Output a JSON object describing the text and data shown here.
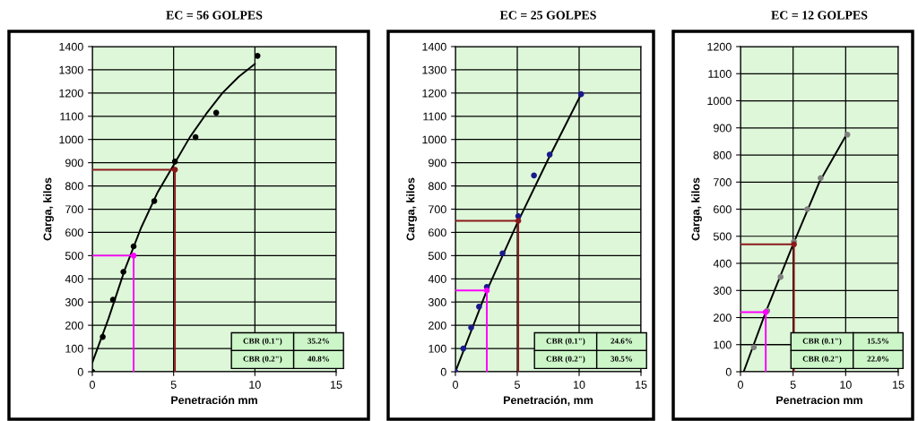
{
  "chart_data": [
    {
      "type": "line",
      "title": "EC = 56 GOLPES",
      "xlabel": "Penetración mm",
      "ylabel": "Carga, kilos",
      "xlim": [
        0,
        15
      ],
      "ylim": [
        0,
        1400
      ],
      "xticks": [
        0,
        5,
        10,
        15
      ],
      "yticks": [
        0,
        100,
        200,
        300,
        400,
        500,
        600,
        700,
        800,
        900,
        1000,
        1100,
        1200,
        1300,
        1400
      ],
      "grid": true,
      "series": [
        {
          "color": "#000000",
          "x": [
            0,
            1,
            2,
            3,
            4,
            5,
            6,
            7,
            8,
            9,
            10
          ],
          "values": [
            40,
            230,
            440,
            620,
            770,
            890,
            1010,
            1110,
            1200,
            1270,
            1325
          ]
        },
        {
          "color": "#ff00ff",
          "x": [
            0,
            2.54,
            2.54
          ],
          "values": [
            500,
            500,
            0
          ]
        },
        {
          "color": "#8b1a1a",
          "x": [
            0,
            5.08,
            5.08
          ],
          "values": [
            870,
            870,
            0
          ]
        },
        {
          "type": "scatter",
          "marker": "circle",
          "color": "#000000",
          "x": [
            0,
            0.64,
            1.27,
            1.91,
            2.54,
            3.81,
            5.08,
            6.35,
            7.62,
            10.16
          ],
          "values": [
            0,
            150,
            310,
            430,
            540,
            735,
            905,
            1010,
            1115,
            1360
          ]
        },
        {
          "type": "scatter",
          "marker": "circle",
          "color": "#8b1a1a",
          "x": [
            5.08
          ],
          "values": [
            870
          ]
        },
        {
          "type": "scatter",
          "marker": "circle",
          "color": "#ff00ff",
          "x": [
            2.54
          ],
          "values": [
            500
          ]
        }
      ],
      "annotations": [
        "CBR (0.1\")",
        "35.2%",
        "CBR (0.2\")",
        "40.8%"
      ]
    },
    {
      "type": "line",
      "title": "EC = 25 GOLPES",
      "xlabel": "Penetración, mm",
      "ylabel": "Carga, kilos",
      "xlim": [
        0,
        15
      ],
      "ylim": [
        0,
        1400
      ],
      "xticks": [
        0,
        5,
        10,
        15
      ],
      "yticks": [
        0,
        100,
        200,
        300,
        400,
        500,
        600,
        700,
        800,
        900,
        1000,
        1100,
        1200,
        1300,
        1400
      ],
      "grid": true,
      "series": [
        {
          "color": "#000000",
          "x": [
            0,
            2.5,
            5,
            7.5,
            10.16
          ],
          "values": [
            0,
            345,
            640,
            915,
            1195
          ]
        },
        {
          "color": "#ff00ff",
          "x": [
            0,
            2.54,
            2.54
          ],
          "values": [
            350,
            350,
            0
          ]
        },
        {
          "color": "#8b1a1a",
          "x": [
            0,
            5.08,
            5.08
          ],
          "values": [
            650,
            650,
            0
          ]
        },
        {
          "type": "scatter",
          "marker": "circle",
          "color": "#1a1a8c",
          "x": [
            0,
            0.64,
            1.27,
            1.91,
            2.54,
            3.81,
            5.08,
            6.35,
            7.62,
            10.16
          ],
          "values": [
            0,
            100,
            190,
            280,
            365,
            510,
            670,
            845,
            935,
            1195
          ]
        },
        {
          "type": "scatter",
          "marker": "circle",
          "color": "#8b1a1a",
          "x": [
            5.08
          ],
          "values": [
            650
          ]
        },
        {
          "type": "scatter",
          "marker": "circle",
          "color": "#ff00ff",
          "x": [
            2.54
          ],
          "values": [
            350
          ]
        }
      ],
      "annotations": [
        "CBR (0.1\")",
        "24.6%",
        "CBR (0.2\")",
        "30.5%"
      ]
    },
    {
      "type": "line",
      "title": "EC = 12 GOLPES",
      "xlabel": "Penetracion mm",
      "ylabel": "Carga, kilos",
      "xlim": [
        0,
        15
      ],
      "ylim": [
        0,
        1200
      ],
      "xticks": [
        0,
        5,
        10,
        15
      ],
      "yticks": [
        0,
        100,
        200,
        300,
        400,
        500,
        600,
        700,
        800,
        900,
        1000,
        1100,
        1200
      ],
      "grid": true,
      "series": [
        {
          "color": "#000000",
          "x": [
            0.3,
            2.4,
            5,
            7.5,
            10
          ],
          "values": [
            0,
            220,
            470,
            700,
            870
          ]
        },
        {
          "color": "#ff00ff",
          "x": [
            0,
            2.4,
            2.4
          ],
          "values": [
            220,
            220,
            0
          ]
        },
        {
          "color": "#8b1a1a",
          "x": [
            0,
            5.08,
            5.08
          ],
          "values": [
            470,
            470,
            0
          ]
        },
        {
          "type": "scatter",
          "marker": "circle",
          "color": "#808080",
          "x": [
            1.27,
            2.54,
            3.81,
            5.08,
            6.35,
            7.62,
            10.16
          ],
          "values": [
            90,
            225,
            350,
            480,
            600,
            715,
            875
          ]
        },
        {
          "type": "scatter",
          "marker": "circle",
          "color": "#8b1a1a",
          "x": [
            5.08
          ],
          "values": [
            470
          ]
        },
        {
          "type": "scatter",
          "marker": "circle",
          "color": "#ff00ff",
          "x": [
            2.4
          ],
          "values": [
            220
          ]
        }
      ],
      "annotations": [
        "CBR (0.1\")",
        "15.5%",
        "CBR (0.2\")",
        "22.0%"
      ]
    }
  ]
}
